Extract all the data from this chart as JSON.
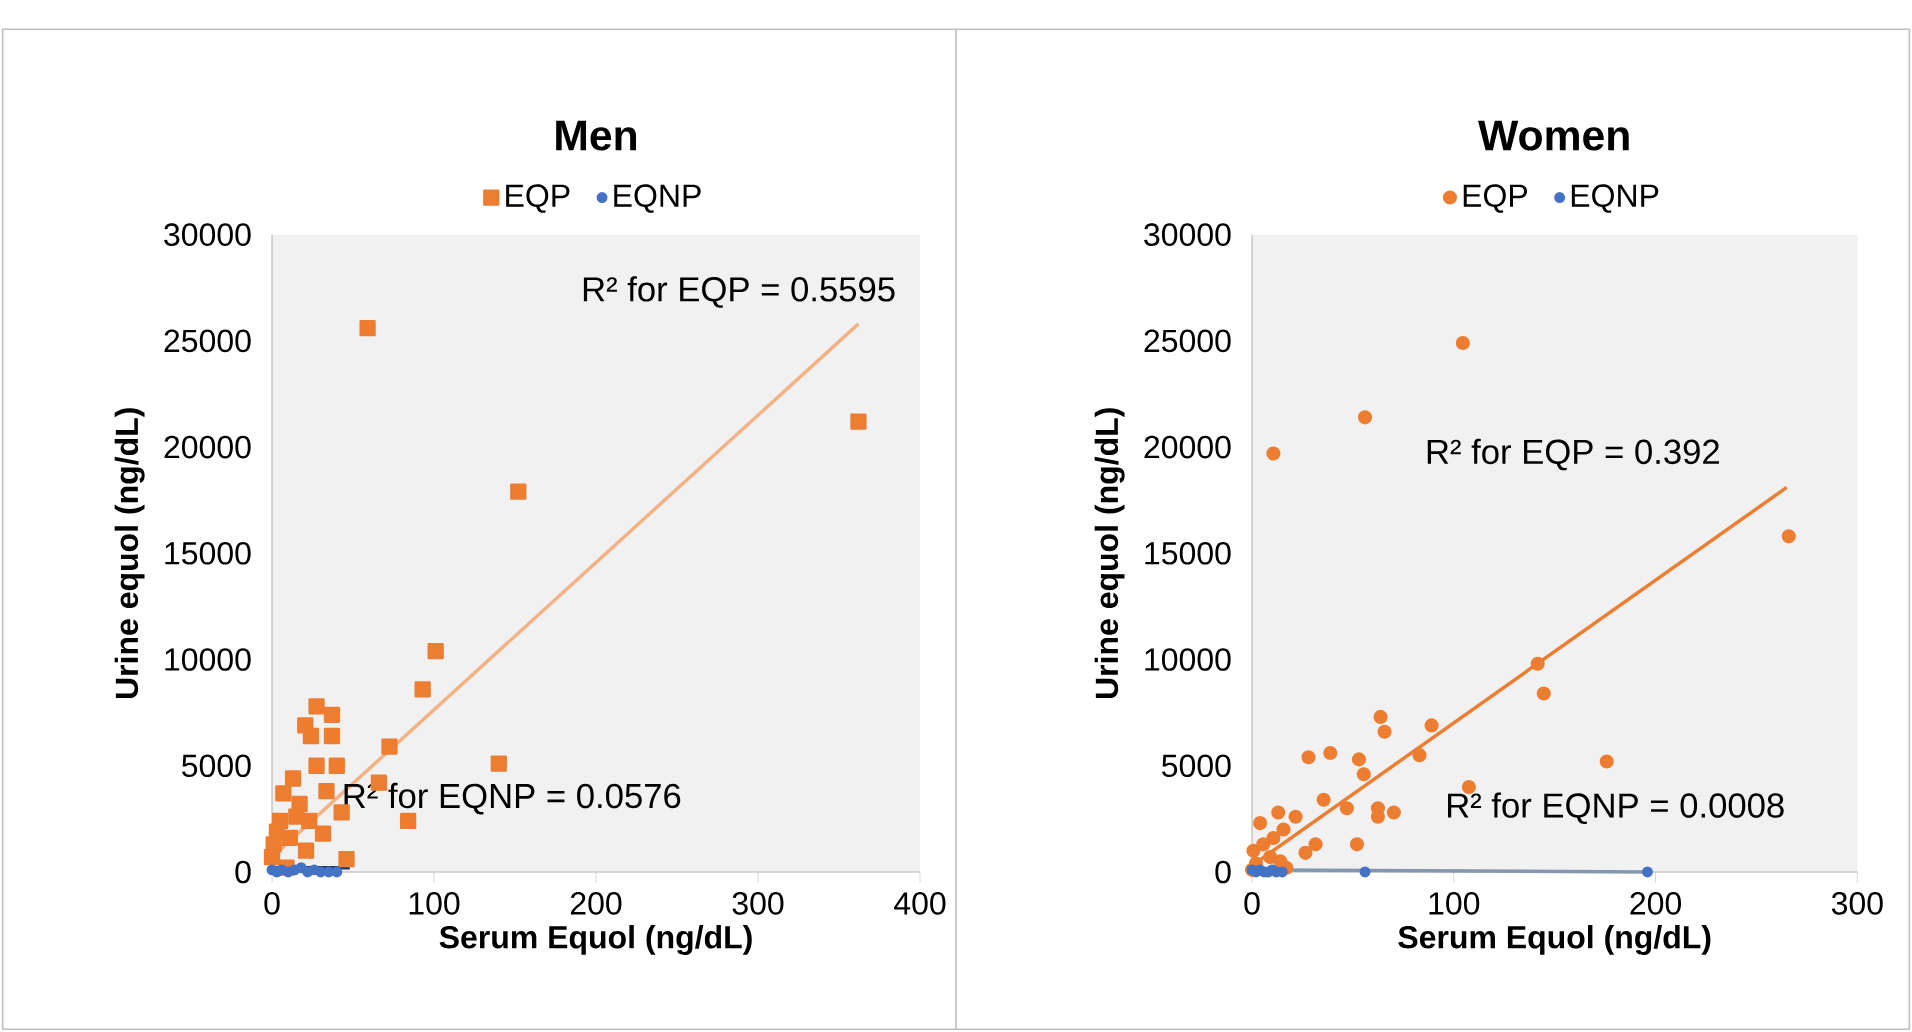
{
  "chart_data": [
    {
      "type": "scatter",
      "title": "Men",
      "xlabel": "Serum Equol (ng/dL)",
      "ylabel": "Urine equol (ng/dL)",
      "xlim": [
        0,
        400
      ],
      "ylim": [
        0,
        30000
      ],
      "xticks": [
        0,
        100,
        200,
        300,
        400
      ],
      "yticks": [
        0,
        5000,
        10000,
        15000,
        20000,
        25000,
        30000
      ],
      "legend": "top",
      "marker": "square",
      "series": [
        {
          "name": "EQP",
          "color": "#ed7d31",
          "x": [
            59,
            362,
            152,
            101,
            93,
            140,
            72.5,
            66,
            84,
            46,
            43,
            27.5,
            37,
            20.5,
            24,
            37,
            27.5,
            40,
            33.6,
            13,
            7,
            17,
            5,
            23,
            1,
            11,
            31.5,
            0,
            9,
            21,
            15,
            3
          ],
          "values": [
            25600,
            21200,
            17900,
            10400,
            8600,
            5100,
            5900,
            4200,
            2400,
            600,
            2800,
            7800,
            7400,
            6900,
            6400,
            6400,
            5000,
            5000,
            3800,
            4400,
            3700,
            3200,
            2400,
            2400,
            1300,
            1600,
            1800,
            700,
            200,
            1000,
            2600,
            1900
          ]
        },
        {
          "name": "EQNP",
          "color": "#4472c4",
          "marker": "circle",
          "x": [
            0,
            3,
            6,
            10,
            14,
            18,
            22,
            26,
            30,
            35,
            40
          ],
          "values": [
            100,
            0,
            100,
            0,
            100,
            200,
            0,
            100,
            0,
            0,
            0
          ]
        },
        {
          "type": "line",
          "color": "#f4b183",
          "marker": "none",
          "x": [
            0,
            362
          ],
          "values": [
            700,
            25800
          ]
        },
        {
          "type": "line",
          "color": "#1f3864",
          "marker": "none",
          "x": [
            0,
            48
          ],
          "values": [
            200,
            200
          ]
        }
      ],
      "annotations": [
        "R² for EQP = 0.5595",
        "R² for EQNP = 0.0576"
      ]
    },
    {
      "type": "scatter",
      "title": "Women",
      "xlabel": "Serum Equol (ng/dL)",
      "ylabel": "Urine equol (ng/dL)",
      "xlim": [
        0,
        300
      ],
      "ylim": [
        0,
        30000
      ],
      "xticks": [
        0,
        100,
        200,
        300
      ],
      "yticks": [
        0,
        5000,
        10000,
        15000,
        20000,
        25000,
        30000
      ],
      "legend": "top",
      "marker": "circle",
      "series": [
        {
          "name": "EQP",
          "color": "#ed7d31",
          "x": [
            104.5,
            56,
            10.6,
            266,
            141.6,
            144.6,
            175.8,
            107.5,
            89,
            83,
            63.7,
            65.7,
            53,
            55.4,
            38.8,
            28,
            35.5,
            47,
            62.4,
            62.4,
            70.3,
            52,
            31.5,
            26.5,
            21.6,
            13,
            4,
            0.7,
            5.6,
            10.6,
            15.6,
            9,
            14,
            2,
            17,
            0
          ],
          "values": [
            24900,
            21400,
            19700,
            15800,
            9800,
            8400,
            5200,
            4000,
            6900,
            5500,
            7300,
            6600,
            5300,
            4600,
            5600,
            5400,
            3400,
            3000,
            3000,
            2600,
            2800,
            1300,
            1300,
            900,
            2600,
            2800,
            2300,
            1000,
            1300,
            1600,
            2000,
            700,
            500,
            400,
            200,
            100
          ]
        },
        {
          "name": "EQNP",
          "color": "#4472c4",
          "x": [
            0,
            2,
            4,
            6,
            8,
            10,
            12,
            15,
            56,
            196
          ],
          "values": [
            100,
            0,
            100,
            0,
            0,
            100,
            0,
            0,
            0,
            0
          ]
        },
        {
          "type": "line",
          "color": "#ed7d31",
          "marker": "none",
          "x": [
            0,
            265
          ],
          "values": [
            300,
            18100
          ]
        },
        {
          "type": "line",
          "color": "#8497b0",
          "marker": "none",
          "x": [
            0,
            196
          ],
          "values": [
            100,
            0
          ]
        }
      ],
      "annotations": [
        "R² for EQP = 0.392",
        "R² for EQNP = 0.0008"
      ]
    }
  ]
}
